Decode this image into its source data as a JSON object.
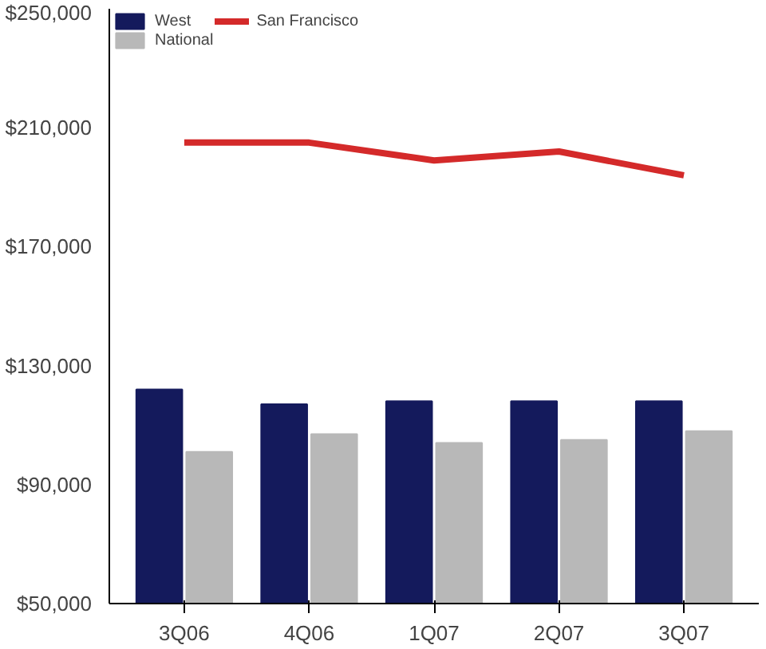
{
  "chart_data": {
    "type": "bar",
    "categories": [
      "3Q06",
      "4Q06",
      "1Q07",
      "2Q07",
      "3Q07"
    ],
    "series": [
      {
        "name": "West",
        "color": "#141a5c",
        "values": [
          122000,
          117000,
          118000,
          118000,
          118000
        ]
      },
      {
        "name": "National",
        "color": "#b8b8b8",
        "values": [
          101000,
          107000,
          104000,
          105000,
          108000
        ]
      },
      {
        "name": "San Francisco",
        "color": "#d42a2a",
        "type": "line",
        "values": [
          205000,
          205000,
          199000,
          202000,
          194000
        ]
      }
    ],
    "ylim": [
      50000,
      250000
    ],
    "yticks": [
      {
        "value": 50000,
        "label": "$50,000"
      },
      {
        "value": 90000,
        "label": "$90,000"
      },
      {
        "value": 130000,
        "label": "$130,000"
      },
      {
        "value": 170000,
        "label": "$170,000"
      },
      {
        "value": 210000,
        "label": "$210,000"
      },
      {
        "value": 250000,
        "label": "$250,000"
      }
    ],
    "grid": false,
    "legend": "top left"
  }
}
